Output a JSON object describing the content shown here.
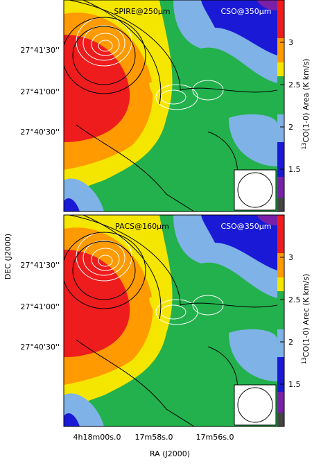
{
  "panels": [
    {
      "label": "SPIRE@250μm",
      "reference": "CSO@350μm",
      "colorbar": {
        "lim": [
          1.0,
          3.5
        ],
        "ticks": [
          1.5,
          2,
          2.5,
          3
        ],
        "label_sup": "13",
        "label": "CO(1-0) Area (K km/s)"
      }
    },
    {
      "label": "PACS@160μm",
      "reference": "CSO@350μm",
      "colorbar": {
        "lim": [
          1.0,
          3.5
        ],
        "ticks": [
          1.5,
          2,
          2.5,
          3
        ],
        "label_sup": "13",
        "label": "CO(1-0) Arec (K km/s)"
      }
    }
  ],
  "dec_ticks": [
    "27°41'30''",
    "27°41'00''",
    "27°40'30''"
  ],
  "ra_ticks": [
    "4h18m00s.0",
    "17m58s.0",
    "17m56s.0"
  ],
  "x_label": "RA (J2000)",
  "y_label": "DEC (J2000)"
}
